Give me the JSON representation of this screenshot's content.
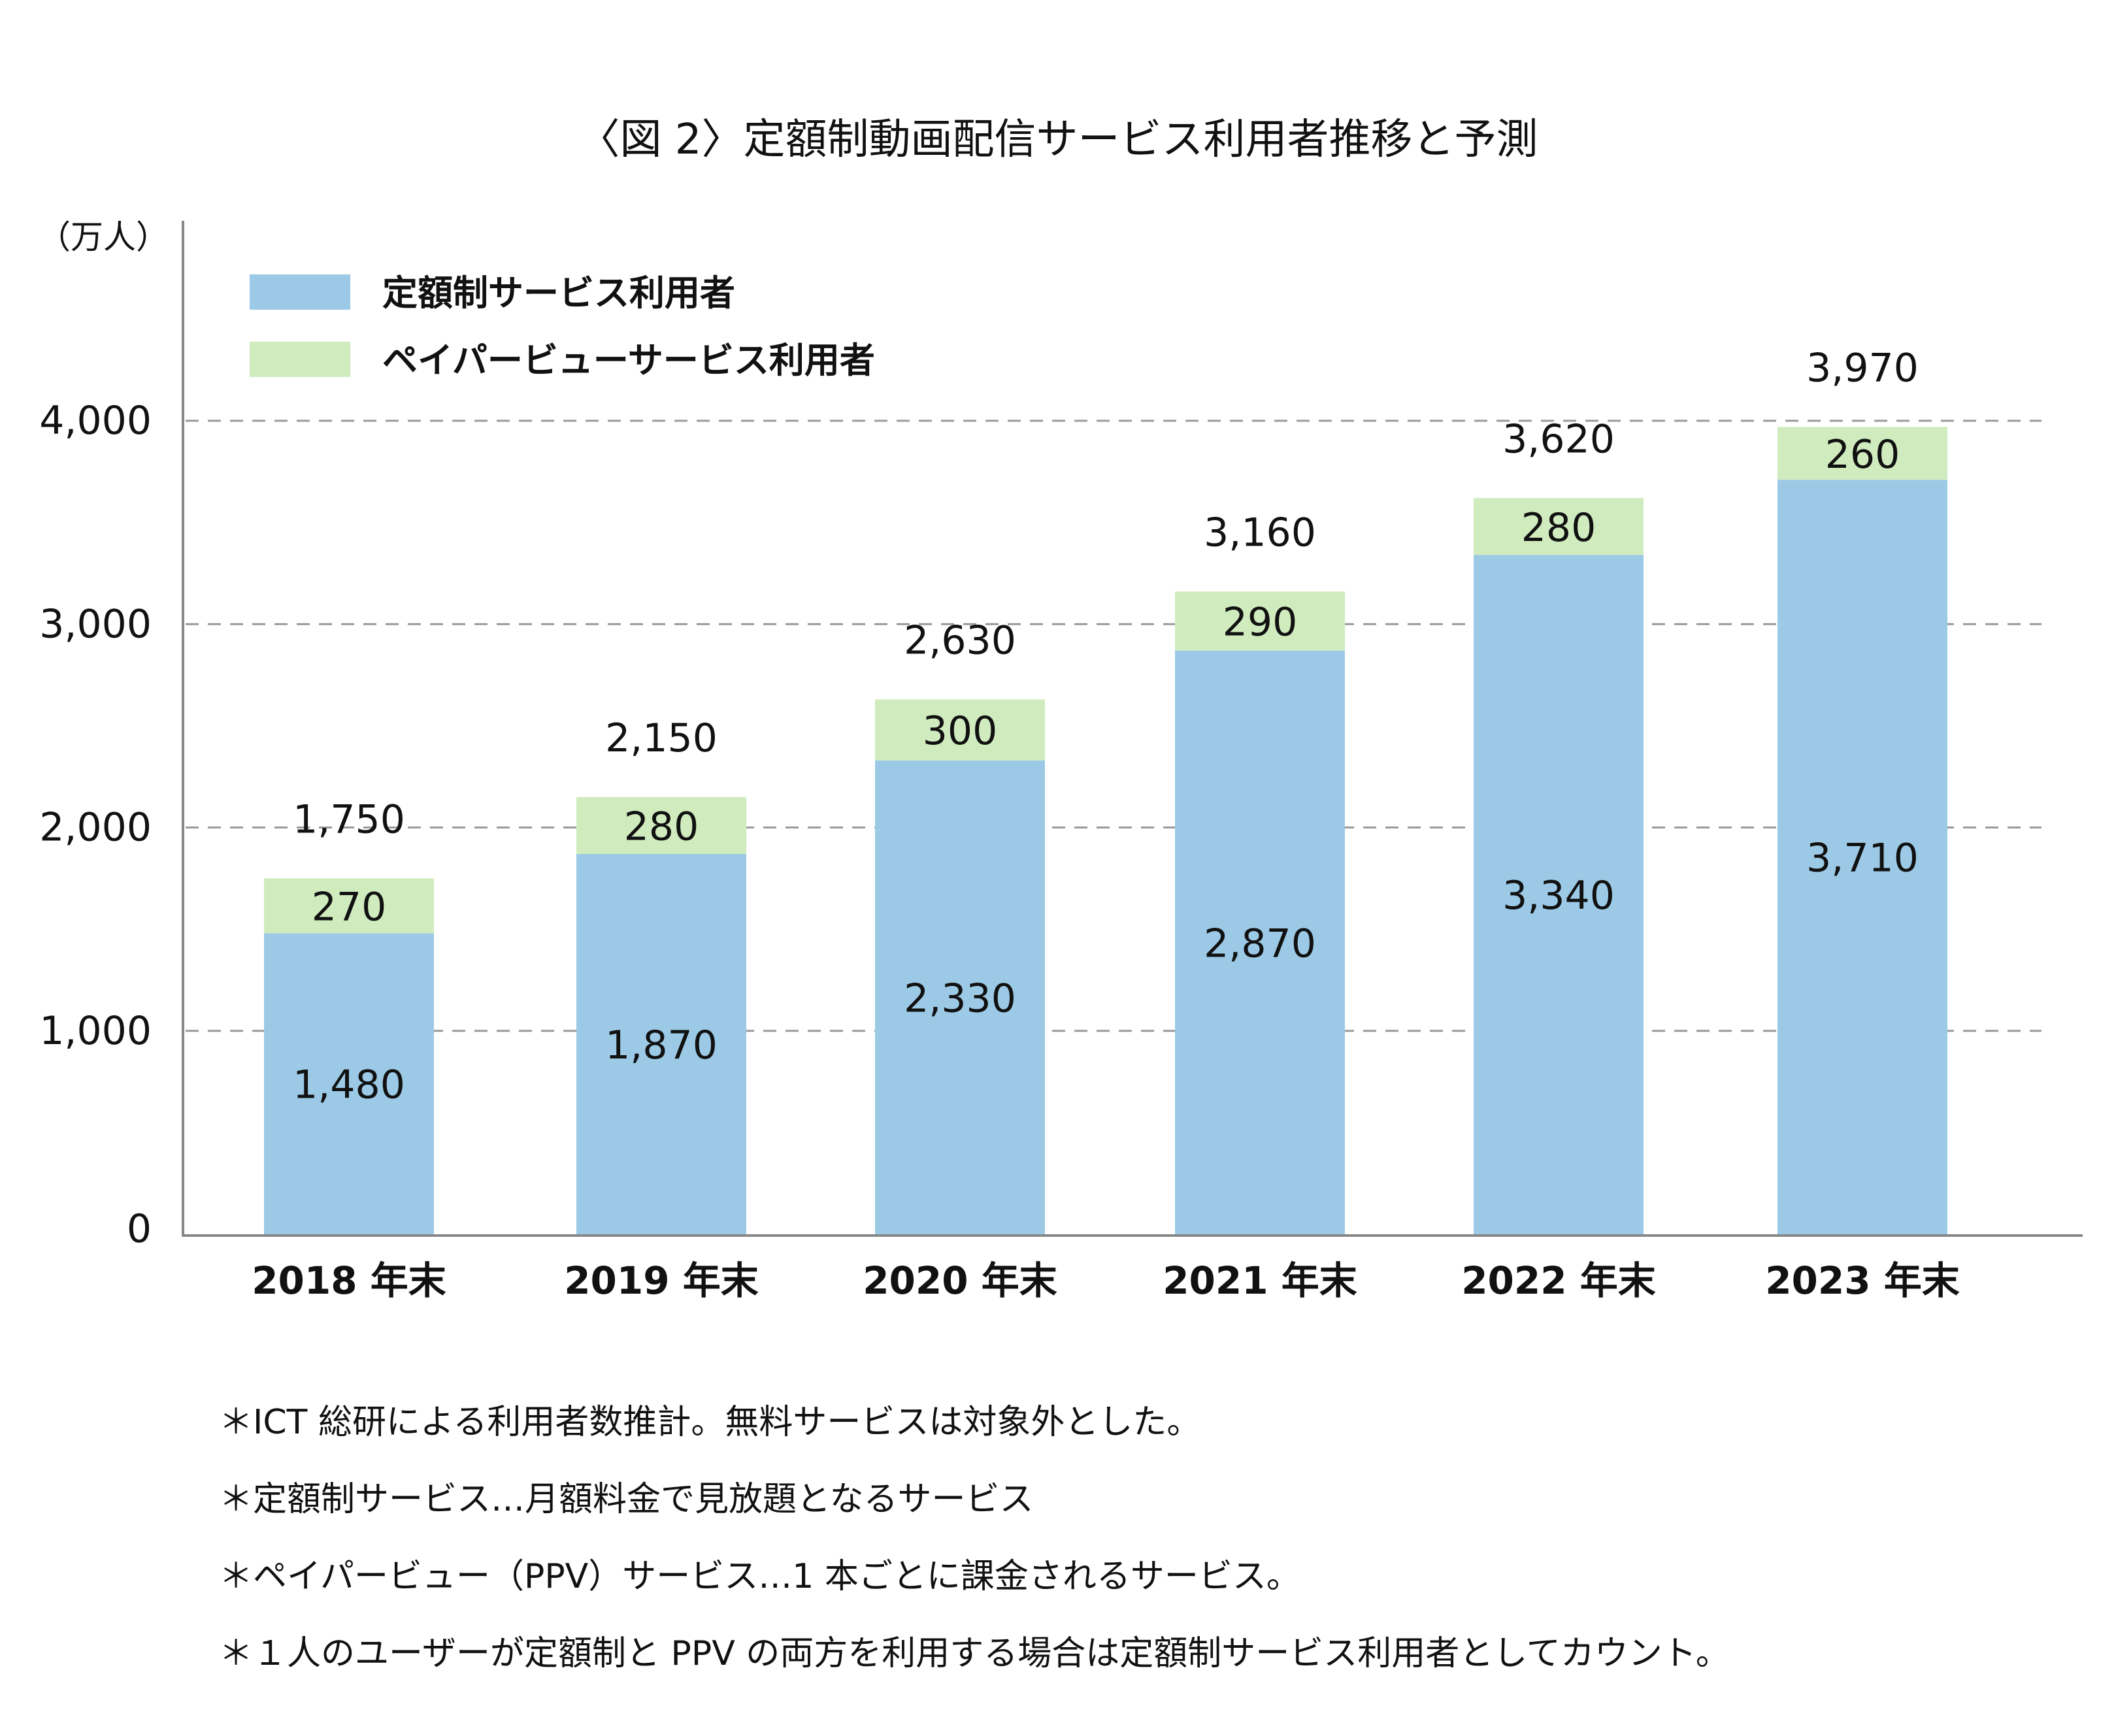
{
  "chart_data": {
    "type": "bar",
    "stacked": true,
    "title": "〈図 2〉定額制動画配信サービス利用者推移と予測",
    "ylabel": "（万人）",
    "xlabel": "",
    "ylim": [
      0,
      4000
    ],
    "yticks": [
      "0",
      "1,000",
      "2,000",
      "3,000",
      "4,000"
    ],
    "ytick_values": [
      0,
      1000,
      2000,
      3000,
      4000
    ],
    "grid": "horizontal dashed",
    "legend_position": "top-left",
    "categories": [
      "2018 年末",
      "2019 年末",
      "2020 年末",
      "2021 年末",
      "2022 年末",
      "2023 年末"
    ],
    "series": [
      {
        "name": "定額制サービス利用者",
        "color": "#9ccae6",
        "values": [
          1480,
          1870,
          2330,
          2870,
          3340,
          3710
        ],
        "labels": [
          "1,480",
          "1,870",
          "2,330",
          "2,870",
          "3,340",
          "3,710"
        ]
      },
      {
        "name": "ペイパービューサービス利用者",
        "color": "#d0ecbf",
        "values": [
          270,
          280,
          300,
          290,
          280,
          260
        ],
        "labels": [
          "270",
          "280",
          "300",
          "290",
          "280",
          "260"
        ]
      }
    ],
    "totals": [
      1750,
      2150,
      2630,
      3160,
      3620,
      3970
    ],
    "total_labels": [
      "1,750",
      "2,150",
      "2,630",
      "3,160",
      "3,620",
      "3,970"
    ]
  },
  "notes": [
    "＊ICT 総研による利用者数推計。無料サービスは対象外とした。",
    "＊定額制サービス…月額料金で見放題となるサービス",
    "＊ペイパービュー（PPV）サービス…1 本ごとに課金されるサービス。",
    "＊１人のユーザーが定額制と PPV の両方を利用する場合は定額制サービス利用者としてカウント。"
  ]
}
